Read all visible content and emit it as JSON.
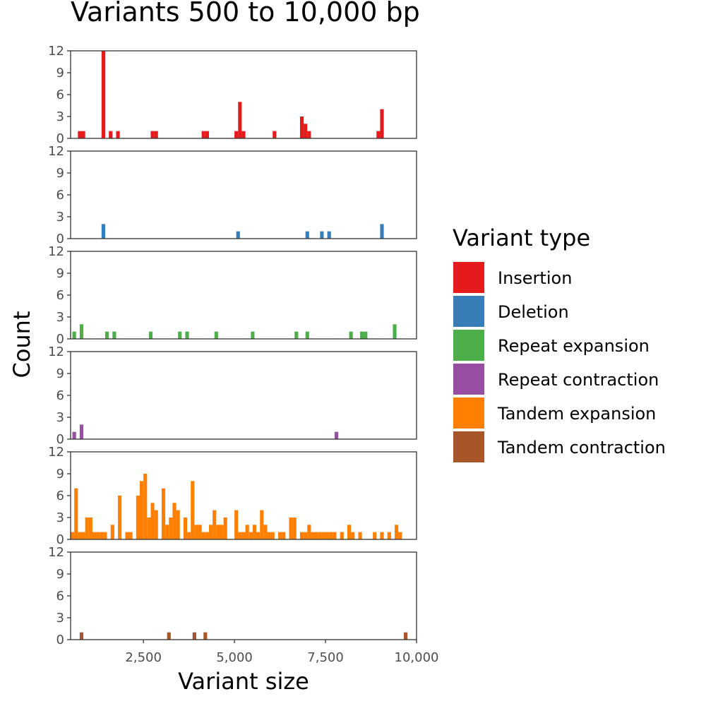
{
  "chart_data": {
    "type": "bar",
    "title": "Variants 500 to 10,000 bp",
    "xlabel": "Variant size",
    "ylabel": "Count",
    "xlim": [
      500,
      10000
    ],
    "ylim": [
      0,
      12
    ],
    "x_ticks": [
      2500,
      5000,
      7500,
      10000
    ],
    "x_tick_labels": [
      "2,500",
      "5,000",
      "7,500",
      "10,000"
    ],
    "y_ticks": [
      0,
      3,
      6,
      9,
      12
    ],
    "y_tick_labels": [
      "0",
      "3",
      "6",
      "9",
      "12"
    ],
    "bin_width": 100,
    "grid": false,
    "legend_position": "right",
    "legend_title": "Variant type",
    "series": [
      {
        "name": "Insertion",
        "color": "#E41A1C",
        "bins": [
          [
            750,
            1
          ],
          [
            850,
            1
          ],
          [
            1400,
            12
          ],
          [
            1600,
            1
          ],
          [
            1800,
            1
          ],
          [
            2750,
            1
          ],
          [
            2850,
            1
          ],
          [
            4150,
            1
          ],
          [
            4250,
            1
          ],
          [
            5050,
            1
          ],
          [
            5150,
            5
          ],
          [
            5250,
            1
          ],
          [
            6100,
            1
          ],
          [
            6850,
            3
          ],
          [
            6950,
            2
          ],
          [
            7050,
            1
          ],
          [
            8950,
            1
          ],
          [
            9050,
            4
          ]
        ]
      },
      {
        "name": "Deletion",
        "color": "#377EB8",
        "bins": [
          [
            1400,
            2
          ],
          [
            5100,
            1
          ],
          [
            7000,
            1
          ],
          [
            7400,
            1
          ],
          [
            7600,
            1
          ],
          [
            9050,
            2
          ]
        ]
      },
      {
        "name": "Repeat expansion",
        "color": "#4DAF4A",
        "bins": [
          [
            600,
            1
          ],
          [
            800,
            2
          ],
          [
            1500,
            1
          ],
          [
            1700,
            1
          ],
          [
            2700,
            1
          ],
          [
            3500,
            1
          ],
          [
            3700,
            1
          ],
          [
            4500,
            1
          ],
          [
            5500,
            1
          ],
          [
            6700,
            1
          ],
          [
            7000,
            1
          ],
          [
            8200,
            1
          ],
          [
            8500,
            1
          ],
          [
            8600,
            1
          ],
          [
            9400,
            2
          ]
        ]
      },
      {
        "name": "Repeat contraction",
        "color": "#984EA3",
        "bins": [
          [
            600,
            1
          ],
          [
            800,
            2
          ],
          [
            7800,
            1
          ]
        ]
      },
      {
        "name": "Tandem expansion",
        "color": "#FF7F00",
        "bins": [
          [
            550,
            1
          ],
          [
            650,
            7
          ],
          [
            750,
            1
          ],
          [
            850,
            1
          ],
          [
            950,
            3
          ],
          [
            1050,
            3
          ],
          [
            1150,
            1
          ],
          [
            1250,
            1
          ],
          [
            1350,
            1
          ],
          [
            1450,
            1
          ],
          [
            1550,
            0
          ],
          [
            1650,
            2
          ],
          [
            1750,
            0
          ],
          [
            1850,
            6
          ],
          [
            1950,
            0
          ],
          [
            2050,
            1
          ],
          [
            2150,
            1
          ],
          [
            2250,
            0
          ],
          [
            2350,
            6
          ],
          [
            2450,
            8
          ],
          [
            2550,
            9
          ],
          [
            2650,
            3
          ],
          [
            2750,
            5
          ],
          [
            2850,
            4
          ],
          [
            2950,
            0
          ],
          [
            3050,
            7
          ],
          [
            3150,
            2
          ],
          [
            3250,
            3
          ],
          [
            3350,
            5
          ],
          [
            3450,
            4
          ],
          [
            3550,
            0
          ],
          [
            3650,
            3
          ],
          [
            3750,
            1
          ],
          [
            3850,
            8
          ],
          [
            3950,
            2
          ],
          [
            4050,
            2
          ],
          [
            4150,
            1
          ],
          [
            4250,
            1
          ],
          [
            4350,
            2
          ],
          [
            4450,
            4
          ],
          [
            4550,
            2
          ],
          [
            4650,
            2
          ],
          [
            4750,
            3
          ],
          [
            4850,
            0
          ],
          [
            4950,
            0
          ],
          [
            5050,
            4
          ],
          [
            5150,
            1
          ],
          [
            5250,
            1
          ],
          [
            5350,
            2
          ],
          [
            5450,
            1
          ],
          [
            5550,
            2
          ],
          [
            5650,
            1
          ],
          [
            5750,
            4
          ],
          [
            5850,
            2
          ],
          [
            5950,
            1
          ],
          [
            6050,
            1
          ],
          [
            6150,
            0
          ],
          [
            6250,
            1
          ],
          [
            6350,
            1
          ],
          [
            6450,
            0
          ],
          [
            6550,
            3
          ],
          [
            6650,
            3
          ],
          [
            6750,
            0
          ],
          [
            6850,
            1
          ],
          [
            6950,
            1
          ],
          [
            7050,
            2
          ],
          [
            7150,
            1
          ],
          [
            7250,
            1
          ],
          [
            7350,
            1
          ],
          [
            7450,
            1
          ],
          [
            7550,
            1
          ],
          [
            7650,
            1
          ],
          [
            7750,
            1
          ],
          [
            7850,
            0
          ],
          [
            7950,
            1
          ],
          [
            8050,
            0
          ],
          [
            8150,
            2
          ],
          [
            8250,
            1
          ],
          [
            8350,
            0
          ],
          [
            8450,
            1
          ],
          [
            8550,
            0
          ],
          [
            8650,
            0
          ],
          [
            8750,
            0
          ],
          [
            8850,
            1
          ],
          [
            8950,
            0
          ],
          [
            9050,
            1
          ],
          [
            9150,
            0
          ],
          [
            9250,
            1
          ],
          [
            9350,
            0
          ],
          [
            9450,
            2
          ],
          [
            9550,
            1
          ]
        ]
      },
      {
        "name": "Tandem contraction",
        "color": "#A65628",
        "bins": [
          [
            800,
            1
          ],
          [
            3200,
            1
          ],
          [
            3900,
            1
          ],
          [
            4200,
            1
          ],
          [
            9700,
            1
          ]
        ]
      }
    ]
  }
}
